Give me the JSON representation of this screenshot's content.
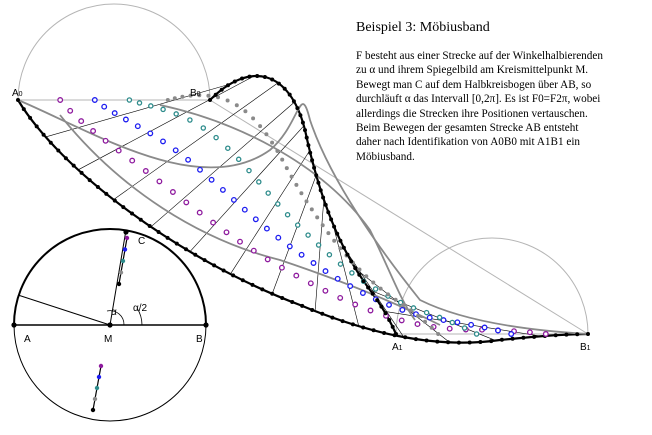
{
  "title": "Beispiel 3: Möbiusband",
  "description": "F besteht aus einer Strecke auf der Winkelhalbierenden\nzu α und ihrem Spiegelbild am Kreismittelpunkt M.\nBewegt man C auf dem Halbkreisbogen über AB, so\ndurchläuft α das Intervall [0,2π]. Es ist F0=F2π, wobei\nallerdings die Strecken ihre Positionen vertauschen.\nBeim Bewegen der gesamten Strecke AB entsteht\ndaher nach Identifikation von A0B0 mit A1B1 ein\nMöbiusband.",
  "labels": {
    "A": "A",
    "M": "M",
    "B": "B",
    "C": "C",
    "alpha": "α",
    "alpha_half": "α/2",
    "A0_main": "A",
    "A0_sub": "0",
    "B0_main": "B",
    "B0_sub": "0",
    "A1_main": "A",
    "A1_sub": "1",
    "B1_main": "B",
    "B1_sub": "1"
  },
  "colors": {
    "line": "#000000",
    "grid": "#b5b5b5",
    "gray_dots": "#8a8a8a",
    "blue_dots": "#1c1cf0",
    "purple_dots": "#8e1a9e",
    "teal_dots": "#2e8c8c",
    "black_dots": "#000000"
  }
}
